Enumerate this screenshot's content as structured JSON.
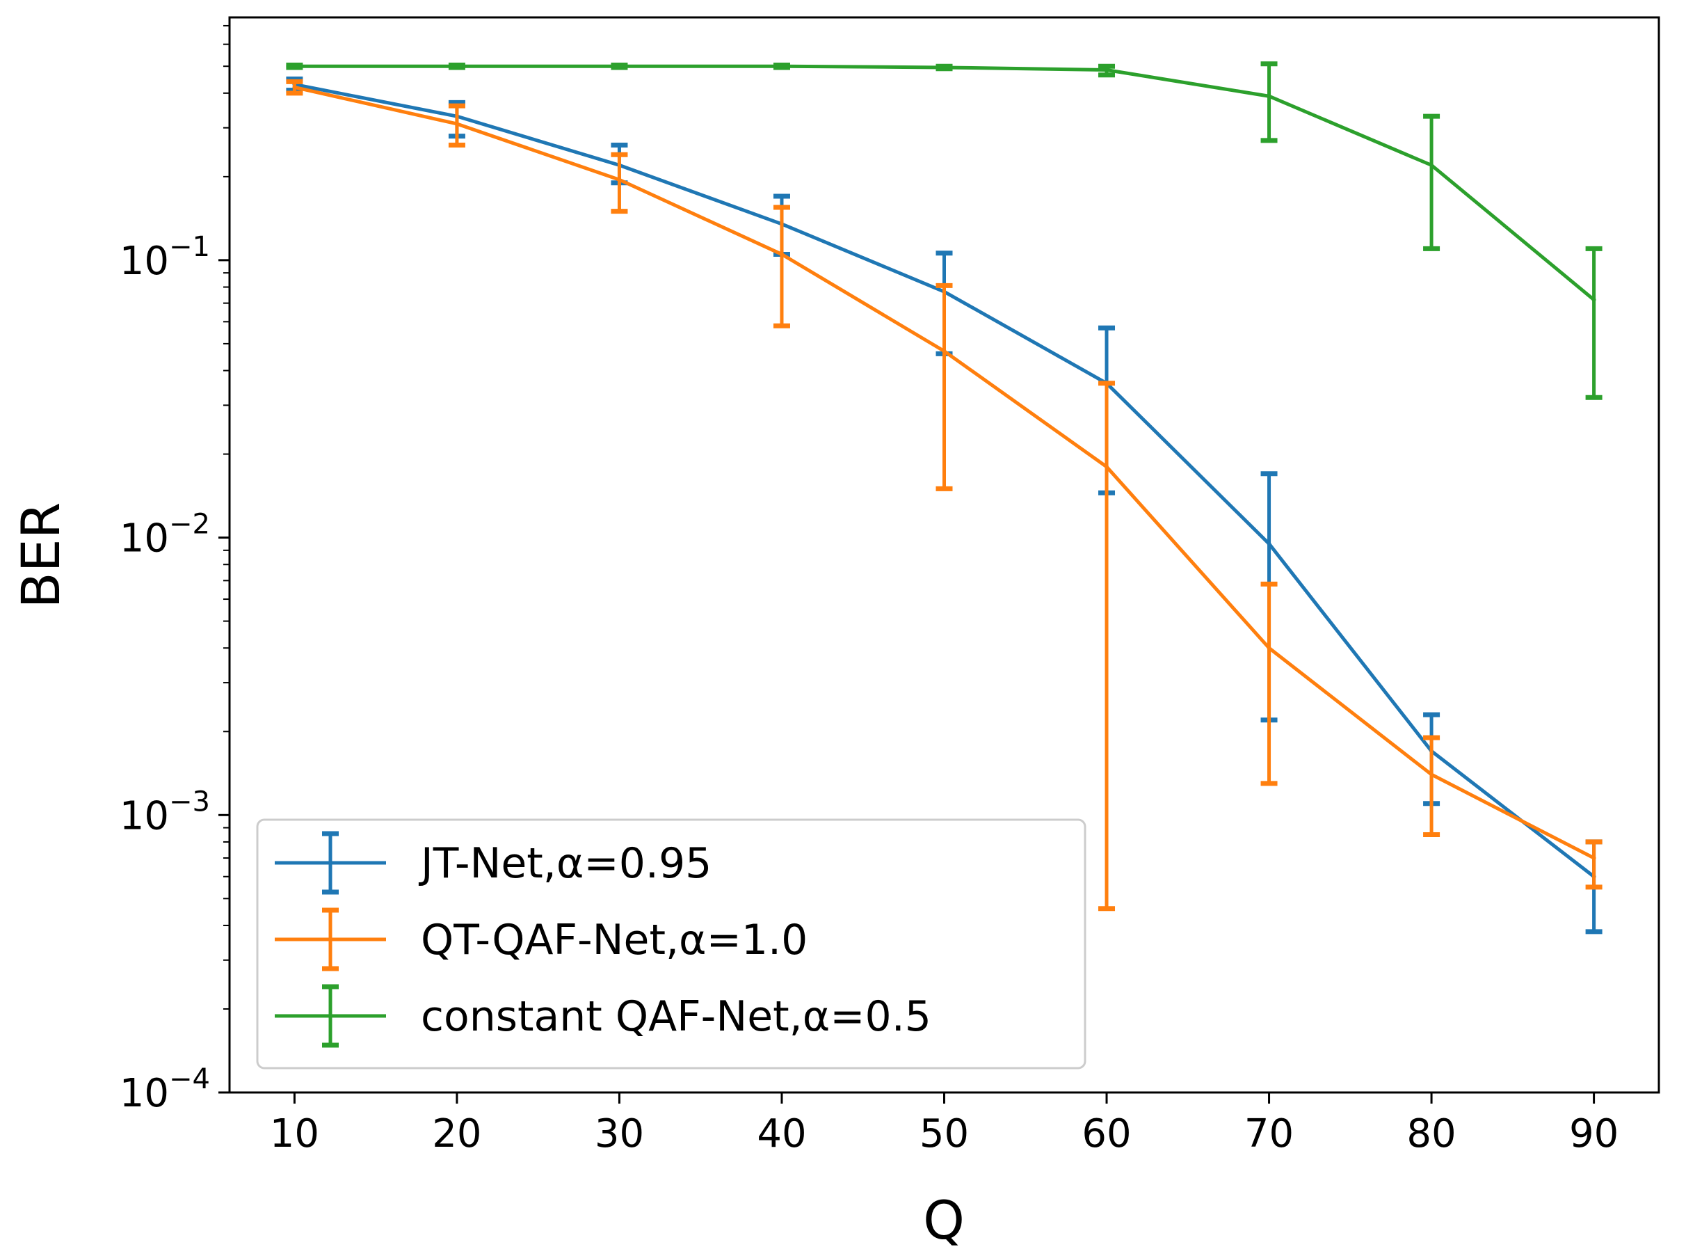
{
  "chart_data": {
    "type": "line",
    "title": "",
    "xlabel": "Q",
    "ylabel": "BER",
    "yscale": "log",
    "xlim": [
      6,
      94
    ],
    "ylim": [
      0.0001,
      0.75
    ],
    "x_ticks": [
      {
        "value": 10,
        "label": "10"
      },
      {
        "value": 20,
        "label": "20"
      },
      {
        "value": 30,
        "label": "30"
      },
      {
        "value": 40,
        "label": "40"
      },
      {
        "value": 50,
        "label": "50"
      },
      {
        "value": 60,
        "label": "60"
      },
      {
        "value": 70,
        "label": "70"
      },
      {
        "value": 80,
        "label": "80"
      },
      {
        "value": 90,
        "label": "90"
      }
    ],
    "y_ticks": [
      {
        "value": 0.1,
        "base": "10",
        "exp": "−1"
      },
      {
        "value": 0.01,
        "base": "10",
        "exp": "−2"
      },
      {
        "value": 0.001,
        "base": "10",
        "exp": "−3"
      },
      {
        "value": 0.0001,
        "base": "10",
        "exp": "−4"
      }
    ],
    "grid": false,
    "legend_position": "lower-left",
    "x": [
      10,
      20,
      30,
      40,
      50,
      60,
      70,
      80,
      90
    ],
    "series": [
      {
        "name": "JT-Net,α=0.95",
        "color": "#1f77b4",
        "values": [
          0.43,
          0.33,
          0.22,
          0.135,
          0.077,
          0.036,
          0.0095,
          0.0017,
          0.0006
        ],
        "err_low": [
          0.41,
          0.28,
          0.19,
          0.105,
          0.046,
          0.0145,
          0.0022,
          0.0011,
          0.00038
        ],
        "err_high": [
          0.45,
          0.37,
          0.26,
          0.17,
          0.106,
          0.057,
          0.017,
          0.0023,
          0.0008
        ]
      },
      {
        "name": "QT-QAF-Net,α=1.0",
        "color": "#ff7f0e",
        "values": [
          0.42,
          0.31,
          0.195,
          0.105,
          0.047,
          0.018,
          0.004,
          0.0014,
          0.0007
        ],
        "err_low": [
          0.4,
          0.26,
          0.15,
          0.058,
          0.015,
          0.00046,
          0.0013,
          0.00085,
          0.00055
        ],
        "err_high": [
          0.44,
          0.36,
          0.24,
          0.155,
          0.081,
          0.036,
          0.0068,
          0.0019,
          0.0008
        ]
      },
      {
        "name": "constant QAF-Net,α=0.5",
        "color": "#2ca02c",
        "values": [
          0.5,
          0.5,
          0.5,
          0.5,
          0.495,
          0.485,
          0.39,
          0.22,
          0.072
        ],
        "err_low": [
          0.495,
          0.495,
          0.495,
          0.495,
          0.49,
          0.465,
          0.27,
          0.11,
          0.032
        ],
        "err_high": [
          0.505,
          0.505,
          0.505,
          0.505,
          0.5,
          0.5,
          0.51,
          0.33,
          0.11
        ]
      }
    ]
  }
}
